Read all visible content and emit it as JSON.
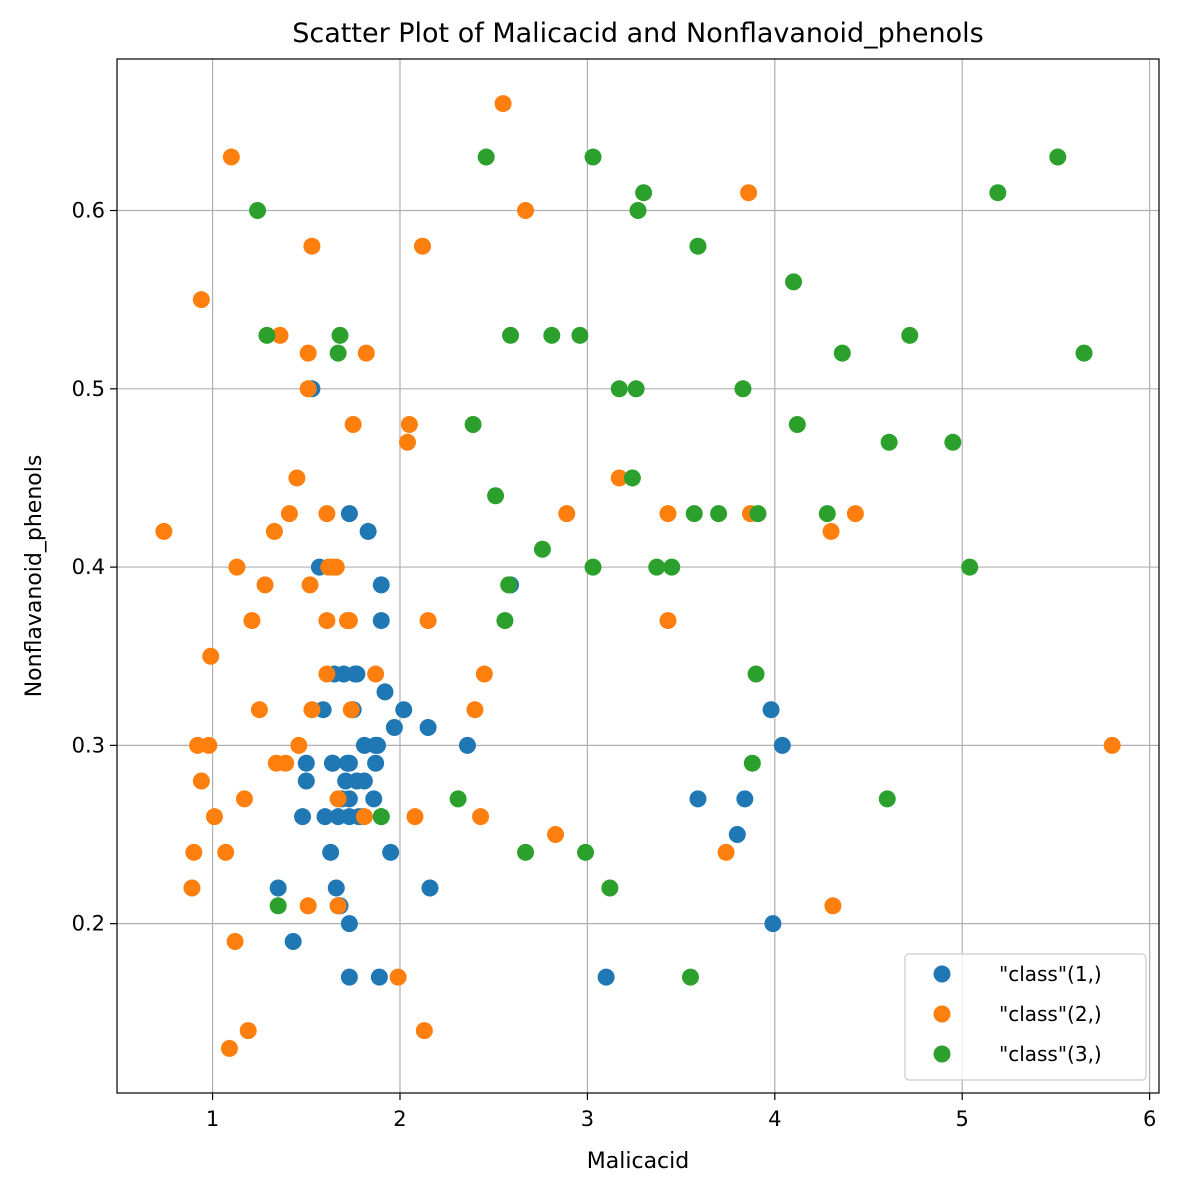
{
  "chart_data": {
    "type": "scatter",
    "title": "Scatter Plot of Malicacid and Nonflavanoid_phenols",
    "xlabel": "Malicacid",
    "ylabel": "Nonflavanoid_phenols",
    "xlim": [
      0.49,
      6.05
    ],
    "ylim": [
      0.105,
      0.685
    ],
    "xticks": [
      1,
      2,
      3,
      4,
      5,
      6
    ],
    "xtick_labels": [
      "1",
      "2",
      "3",
      "4",
      "5",
      "6"
    ],
    "yticks": [
      0.2,
      0.3,
      0.4,
      0.5,
      0.6
    ],
    "ytick_labels": [
      "0.2",
      "0.3",
      "0.4",
      "0.5",
      "0.6"
    ],
    "grid": true,
    "legend_position": "lower-right",
    "series": [
      {
        "name": "\"class\"(1,)",
        "color": "#1f77b4",
        "points": [
          [
            1.71,
            0.28
          ],
          [
            1.78,
            0.26
          ],
          [
            2.36,
            0.3
          ],
          [
            1.95,
            0.24
          ],
          [
            2.59,
            0.39
          ],
          [
            1.76,
            0.34
          ],
          [
            1.87,
            0.3
          ],
          [
            2.15,
            0.31
          ],
          [
            1.64,
            0.29
          ],
          [
            1.35,
            0.22
          ],
          [
            2.16,
            0.22
          ],
          [
            1.48,
            0.26
          ],
          [
            1.73,
            0.29
          ],
          [
            1.73,
            0.43
          ],
          [
            1.87,
            0.29
          ],
          [
            1.81,
            0.3
          ],
          [
            1.92,
            0.33
          ],
          [
            1.57,
            0.4
          ],
          [
            1.59,
            0.32
          ],
          [
            3.1,
            0.17
          ],
          [
            1.63,
            0.24
          ],
          [
            3.8,
            0.25
          ],
          [
            1.86,
            0.27
          ],
          [
            1.6,
            0.26
          ],
          [
            2.02,
            0.32
          ],
          [
            1.73,
            0.17
          ],
          [
            1.73,
            0.2
          ],
          [
            1.65,
            0.34
          ],
          [
            1.75,
            0.32
          ],
          [
            1.9,
            0.37
          ],
          [
            1.67,
            0.26
          ],
          [
            1.73,
            0.26
          ],
          [
            1.7,
            0.34
          ],
          [
            1.97,
            0.31
          ],
          [
            1.43,
            0.19
          ],
          [
            1.89,
            0.17
          ],
          [
            1.68,
            0.21
          ],
          [
            1.53,
            0.5
          ],
          [
            1.66,
            0.22
          ],
          [
            1.83,
            0.42
          ],
          [
            1.5,
            0.28
          ],
          [
            1.5,
            0.29
          ],
          [
            3.59,
            0.27
          ],
          [
            3.84,
            0.27
          ],
          [
            1.81,
            0.28
          ],
          [
            3.98,
            0.32
          ],
          [
            4.04,
            0.3
          ],
          [
            3.99,
            0.2
          ],
          [
            1.77,
            0.28
          ],
          [
            1.69,
            0.27
          ],
          [
            1.9,
            0.39
          ],
          [
            1.67,
            0.21
          ],
          [
            1.8,
            0.26
          ],
          [
            1.77,
            0.34
          ],
          [
            1.9,
            0.26
          ],
          [
            1.73,
            0.27
          ],
          [
            1.64,
            0.29
          ],
          [
            1.88,
            0.3
          ],
          [
            1.72,
            0.29
          ]
        ]
      },
      {
        "name": "\"class\"(2,)",
        "color": "#ff7f0e",
        "points": [
          [
            0.94,
            0.55
          ],
          [
            1.1,
            0.63
          ],
          [
            1.36,
            0.53
          ],
          [
            1.25,
            0.32
          ],
          [
            1.13,
            0.4
          ],
          [
            1.45,
            0.45
          ],
          [
            1.21,
            0.37
          ],
          [
            1.41,
            0.43
          ],
          [
            1.51,
            0.52
          ],
          [
            1.51,
            0.5
          ],
          [
            1.66,
            0.4
          ],
          [
            1.64,
            0.4
          ],
          [
            1.09,
            0.13
          ],
          [
            1.19,
            0.14
          ],
          [
            1.61,
            0.43
          ],
          [
            1.67,
            0.27
          ],
          [
            1.73,
            0.37
          ],
          [
            1.74,
            0.32
          ],
          [
            1.75,
            0.48
          ],
          [
            1.82,
            0.52
          ],
          [
            2.05,
            0.48
          ],
          [
            2.04,
            0.47
          ],
          [
            2.12,
            0.58
          ],
          [
            2.13,
            0.14
          ],
          [
            1.53,
            0.58
          ],
          [
            1.52,
            0.39
          ],
          [
            1.61,
            0.37
          ],
          [
            1.61,
            0.34
          ],
          [
            1.62,
            0.4
          ],
          [
            1.72,
            0.37
          ],
          [
            1.87,
            0.34
          ],
          [
            2.08,
            0.26
          ],
          [
            2.15,
            0.37
          ],
          [
            2.4,
            0.32
          ],
          [
            2.43,
            0.26
          ],
          [
            2.45,
            0.34
          ],
          [
            2.55,
            0.66
          ],
          [
            2.67,
            0.6
          ],
          [
            2.83,
            0.25
          ],
          [
            2.89,
            0.43
          ],
          [
            3.17,
            0.45
          ],
          [
            3.43,
            0.43
          ],
          [
            3.43,
            0.37
          ],
          [
            3.74,
            0.24
          ],
          [
            3.86,
            0.61
          ],
          [
            3.87,
            0.43
          ],
          [
            4.3,
            0.42
          ],
          [
            4.31,
            0.21
          ],
          [
            4.43,
            0.43
          ],
          [
            5.8,
            0.3
          ],
          [
            0.74,
            0.42
          ],
          [
            0.89,
            0.22
          ],
          [
            0.9,
            0.24
          ],
          [
            0.92,
            0.3
          ],
          [
            0.94,
            0.28
          ],
          [
            0.98,
            0.3
          ],
          [
            0.99,
            0.35
          ],
          [
            1.01,
            0.26
          ],
          [
            1.07,
            0.24
          ],
          [
            1.12,
            0.19
          ],
          [
            1.17,
            0.27
          ],
          [
            1.28,
            0.39
          ],
          [
            1.33,
            0.42
          ],
          [
            1.34,
            0.29
          ],
          [
            1.39,
            0.29
          ],
          [
            1.46,
            0.3
          ],
          [
            1.51,
            0.21
          ],
          [
            1.53,
            0.32
          ],
          [
            1.67,
            0.21
          ],
          [
            1.81,
            0.26
          ],
          [
            1.99,
            0.17
          ]
        ]
      },
      {
        "name": "\"class\"(3,)",
        "color": "#2ca02c",
        "points": [
          [
            1.24,
            0.6
          ],
          [
            1.29,
            0.53
          ],
          [
            1.35,
            0.21
          ],
          [
            1.67,
            0.52
          ],
          [
            1.68,
            0.53
          ],
          [
            1.9,
            0.26
          ],
          [
            2.31,
            0.27
          ],
          [
            2.39,
            0.48
          ],
          [
            2.46,
            0.63
          ],
          [
            2.51,
            0.44
          ],
          [
            2.56,
            0.37
          ],
          [
            2.58,
            0.39
          ],
          [
            2.59,
            0.53
          ],
          [
            2.67,
            0.24
          ],
          [
            2.76,
            0.41
          ],
          [
            2.81,
            0.53
          ],
          [
            2.96,
            0.53
          ],
          [
            2.99,
            0.24
          ],
          [
            3.03,
            0.63
          ],
          [
            3.03,
            0.4
          ],
          [
            3.12,
            0.22
          ],
          [
            3.17,
            0.5
          ],
          [
            3.24,
            0.45
          ],
          [
            3.26,
            0.5
          ],
          [
            3.27,
            0.6
          ],
          [
            3.3,
            0.61
          ],
          [
            3.37,
            0.4
          ],
          [
            3.45,
            0.4
          ],
          [
            3.55,
            0.17
          ],
          [
            3.57,
            0.43
          ],
          [
            3.59,
            0.58
          ],
          [
            3.7,
            0.43
          ],
          [
            3.83,
            0.5
          ],
          [
            3.88,
            0.29
          ],
          [
            3.9,
            0.34
          ],
          [
            3.91,
            0.43
          ],
          [
            4.1,
            0.56
          ],
          [
            4.12,
            0.48
          ],
          [
            4.28,
            0.43
          ],
          [
            4.36,
            0.52
          ],
          [
            4.6,
            0.27
          ],
          [
            4.61,
            0.47
          ],
          [
            4.72,
            0.53
          ],
          [
            4.95,
            0.47
          ],
          [
            5.04,
            0.4
          ],
          [
            5.19,
            0.61
          ],
          [
            5.51,
            0.63
          ],
          [
            5.65,
            0.52
          ]
        ]
      }
    ]
  }
}
